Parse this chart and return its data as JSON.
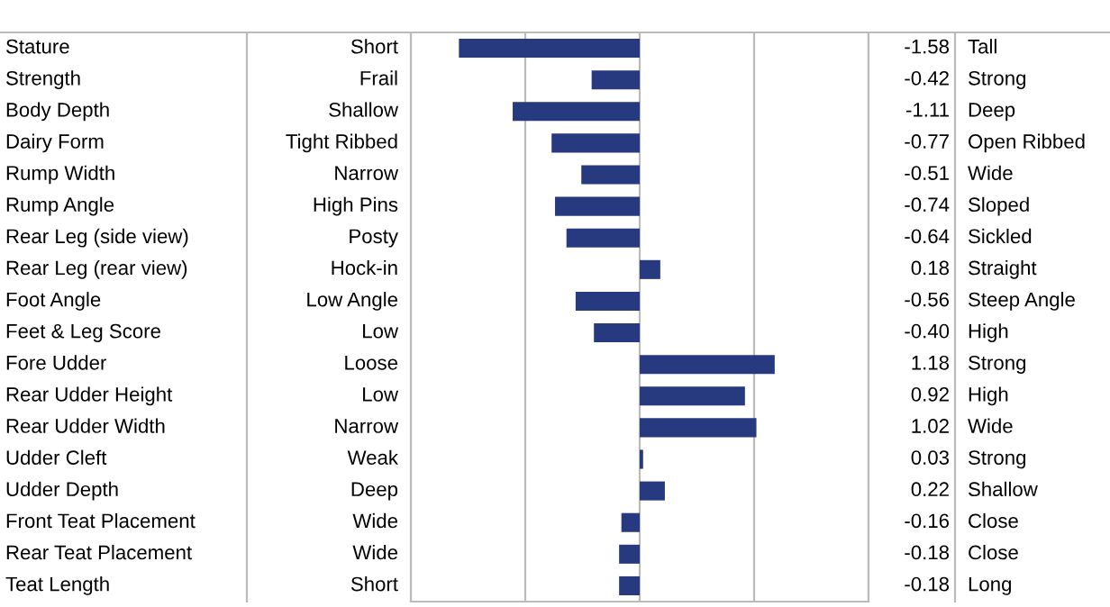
{
  "chart_data": {
    "type": "bar",
    "orientation": "horizontal",
    "categories": [
      "Stature",
      "Strength",
      "Body Depth",
      "Dairy Form",
      "Rump Width",
      "Rump Angle",
      "Rear Leg (side view)",
      "Rear Leg (rear view)",
      "Foot Angle",
      "Feet & Leg Score",
      "Fore Udder",
      "Rear Udder Height",
      "Rear Udder Width",
      "Udder Cleft",
      "Udder Depth",
      "Front Teat Placement",
      "Rear Teat Placement",
      "Teat Length"
    ],
    "values": [
      -1.58,
      -0.42,
      -1.11,
      -0.77,
      -0.51,
      -0.74,
      -0.64,
      0.18,
      -0.56,
      -0.4,
      1.18,
      0.92,
      1.02,
      0.03,
      0.22,
      -0.16,
      -0.18,
      -0.18
    ],
    "value_labels": [
      "-1.58",
      "-0.42",
      "-1.11",
      "-0.77",
      "-0.51",
      "-0.74",
      "-0.64",
      "0.18",
      "-0.56",
      "-0.40",
      "1.18",
      "0.92",
      "1.02",
      "0.03",
      "0.22",
      "-0.16",
      "-0.18",
      "-0.18"
    ],
    "annotations": [
      "Short",
      "Frail",
      "Shallow",
      "Tight Ribbed",
      "Narrow",
      "High Pins",
      "Posty",
      "Hock-in",
      "Low Angle",
      "Low",
      "Loose",
      "Low",
      "Narrow",
      "Weak",
      "Deep",
      "Wide",
      "Wide",
      "Short",
      "Tall",
      "Strong",
      "Deep",
      "Open Ribbed",
      "Wide",
      "Sloped",
      "Sickled",
      "Straight",
      "Steep Angle",
      "High",
      "Strong",
      "High",
      "Wide",
      "Strong",
      "Shallow",
      "Close",
      "Close",
      "Long"
    ],
    "color": "#283a7f",
    "xlim": [
      -2,
      2
    ],
    "xticks": [
      {
        "value": -2,
        "label": null
      },
      {
        "value": -1,
        "label": null
      },
      {
        "value": 0,
        "label": null
      },
      {
        "value": 1,
        "label": null
      },
      {
        "value": 2,
        "label": null
      }
    ],
    "grid": "x"
  }
}
